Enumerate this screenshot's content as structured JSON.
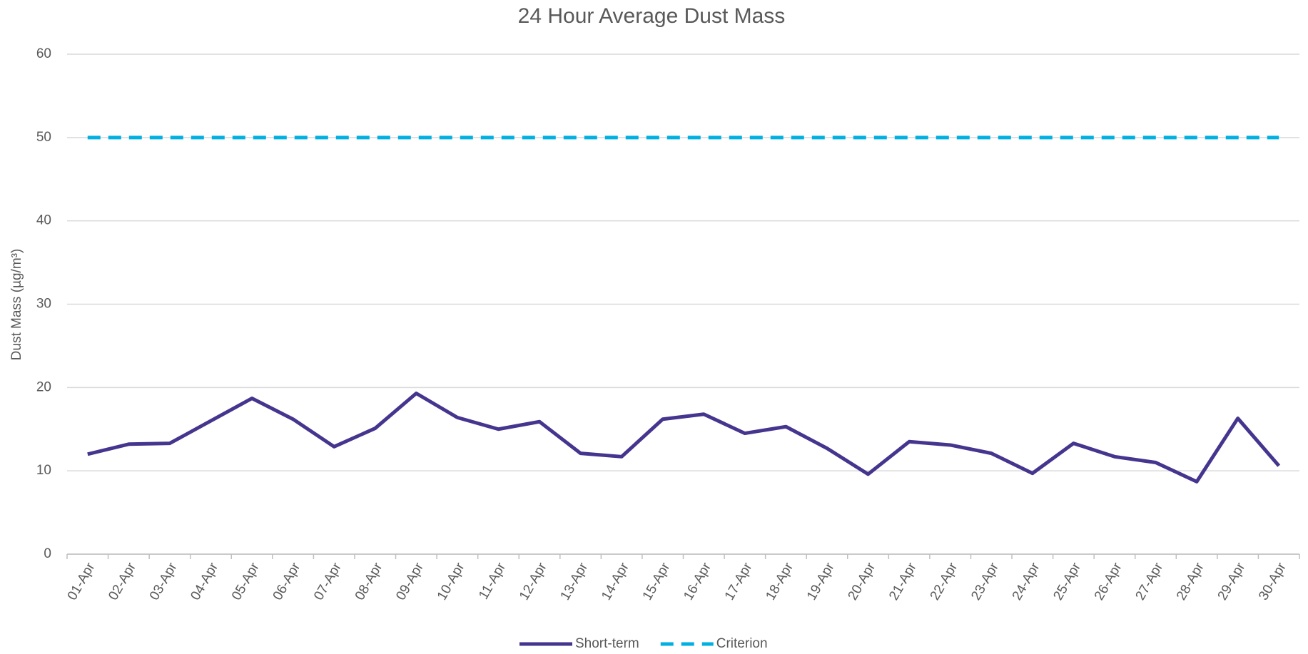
{
  "chart_data": {
    "type": "line",
    "title": "24 Hour Average Dust Mass",
    "y_label": "Dust Mass (µg/m³)",
    "categories": [
      "01-Apr",
      "02-Apr",
      "03-Apr",
      "04-Apr",
      "05-Apr",
      "06-Apr",
      "07-Apr",
      "08-Apr",
      "09-Apr",
      "10-Apr",
      "11-Apr",
      "12-Apr",
      "13-Apr",
      "14-Apr",
      "15-Apr",
      "16-Apr",
      "17-Apr",
      "18-Apr",
      "19-Apr",
      "20-Apr",
      "21-Apr",
      "22-Apr",
      "23-Apr",
      "24-Apr",
      "25-Apr",
      "26-Apr",
      "27-Apr",
      "28-Apr",
      "29-Apr",
      "30-Apr"
    ],
    "series": [
      {
        "name": "Short-term",
        "color": "#46358e",
        "style": "solid",
        "values": [
          12.0,
          13.2,
          13.3,
          16.0,
          18.7,
          16.2,
          12.9,
          15.1,
          19.3,
          16.4,
          15.0,
          15.9,
          12.1,
          11.7,
          16.2,
          16.8,
          14.5,
          15.3,
          12.7,
          9.6,
          13.5,
          13.1,
          12.1,
          9.7,
          13.3,
          11.7,
          11.0,
          8.7,
          16.3,
          10.6
        ]
      },
      {
        "name": "Criterion",
        "color": "#00b0e0",
        "style": "dashed",
        "values": [
          50,
          50,
          50,
          50,
          50,
          50,
          50,
          50,
          50,
          50,
          50,
          50,
          50,
          50,
          50,
          50,
          50,
          50,
          50,
          50,
          50,
          50,
          50,
          50,
          50,
          50,
          50,
          50,
          50,
          50
        ]
      }
    ],
    "ylim": [
      0,
      60
    ],
    "yticks": [
      0,
      10,
      20,
      30,
      40,
      50,
      60
    ],
    "grid": true,
    "legend": "bottom"
  }
}
